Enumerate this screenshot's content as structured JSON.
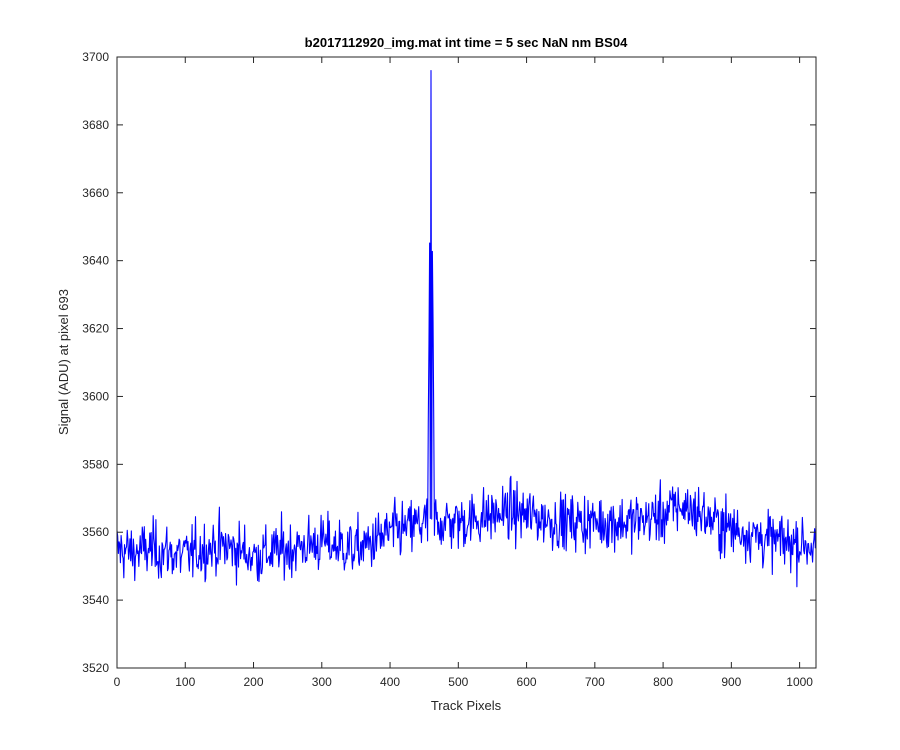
{
  "chart_data": {
    "type": "line",
    "title": "b2017112920_img.mat int time = 5 sec  NaN nm BS04",
    "xlabel": "Track Pixels",
    "ylabel": "Signal (ADU) at pixel 693",
    "xlim": [
      0,
      1024
    ],
    "ylim": [
      3520,
      3700
    ],
    "xticks": [
      "0",
      "100",
      "200",
      "300",
      "400",
      "500",
      "600",
      "700",
      "800",
      "900",
      "1000"
    ],
    "yticks": [
      "3520",
      "3540",
      "3560",
      "3580",
      "3600",
      "3620",
      "3640",
      "3660",
      "3680",
      "3700"
    ],
    "grid": false,
    "legend": "none",
    "line_color": "#0000ff",
    "series": [
      {
        "x": [
          0,
          25,
          50,
          75,
          100,
          125,
          150,
          175,
          200,
          225,
          250,
          275,
          300,
          325,
          350,
          375,
          400,
          425,
          450,
          455,
          460,
          465,
          475,
          500,
          525,
          550,
          575,
          600,
          625,
          650,
          675,
          700,
          725,
          750,
          775,
          800,
          825,
          850,
          875,
          900,
          925,
          950,
          975,
          1000,
          1024
        ],
        "values": [
          3555,
          3554,
          3555,
          3554,
          3553,
          3555,
          3556,
          3555,
          3553,
          3554,
          3555,
          3556,
          3557,
          3556,
          3555,
          3557,
          3560,
          3561,
          3563,
          3562,
          3696,
          3564,
          3563,
          3563,
          3564,
          3565,
          3566,
          3565,
          3564,
          3563,
          3563,
          3563,
          3563,
          3563,
          3564,
          3565,
          3568,
          3566,
          3563,
          3561,
          3560,
          3558,
          3557,
          3557,
          3556
        ],
        "noise": {
          "spread": 7,
          "min": [
            3527,
            3531,
            3531,
            3530,
            3530,
            3533,
            3536,
            3536,
            3527,
            3536,
            3536,
            3536,
            3537,
            3537,
            3531,
            3540,
            3541,
            3541,
            3543,
            3543,
            3560,
            3545,
            3545,
            3545,
            3545,
            3544,
            3546,
            3545,
            3545,
            3543,
            3543,
            3543,
            3544,
            3543,
            3544,
            3538,
            3546,
            3544,
            3543,
            3543,
            3541,
            3538,
            3538,
            3538,
            3538
          ],
          "max": [
            3575,
            3582,
            3582,
            3578,
            3580,
            3576,
            3576,
            3578,
            3578,
            3576,
            3580,
            3575,
            3575,
            3576,
            3572,
            3582,
            3587,
            3587,
            3588,
            3588,
            3696,
            3590,
            3587,
            3588,
            3592,
            3592,
            3592,
            3590,
            3590,
            3589,
            3589,
            3586,
            3589,
            3589,
            3589,
            3589,
            3594,
            3589,
            3586,
            3585,
            3585,
            3585,
            3585,
            3581,
            3578
          ]
        }
      }
    ]
  }
}
